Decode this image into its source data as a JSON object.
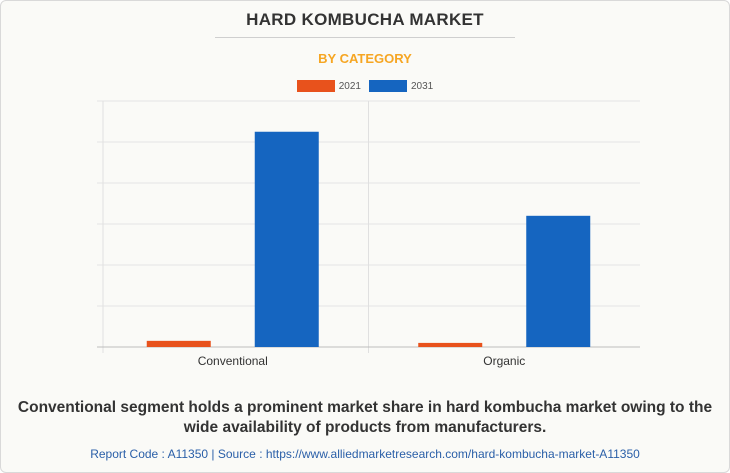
{
  "title": "HARD KOMBUCHA MARKET",
  "subtitle": "BY CATEGORY",
  "caption": "Conventional segment holds a prominent market share in hard kombucha market owing to the wide availability of products from manufacturers.",
  "source": "Report Code : A11350  |  Source : https://www.alliedmarketresearch.com/hard-kombucha-market-A11350",
  "colors": {
    "2021": "#e8521c",
    "2031": "#1565c0",
    "title": "#333333",
    "subtitle": "#f6a623",
    "source": "#2a5fa8"
  },
  "chart_data": {
    "type": "bar",
    "title": "HARD KOMBUCHA MARKET",
    "subtitle": "BY CATEGORY",
    "categories": [
      "Conventional",
      "Organic"
    ],
    "series": [
      {
        "name": "2021",
        "color": "#e8521c",
        "values": [
          3,
          2
        ]
      },
      {
        "name": "2031",
        "color": "#1565c0",
        "values": [
          105,
          64
        ]
      }
    ],
    "ylim": [
      0,
      120
    ],
    "grid": true,
    "legend": "top-center"
  }
}
